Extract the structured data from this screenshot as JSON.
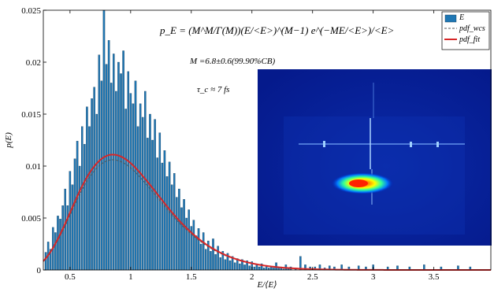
{
  "chart_data": {
    "type": "bar",
    "title": "",
    "formula": "p_E = (M^M/Γ(M))(E/<E>)^(M−1) e^(−ME/<E>)/<E>",
    "annotations": [
      "M =6.8±0.6(99.90%CB)",
      "τ_c ≈ 7 fs"
    ],
    "xlabel": "E/⟨E⟩",
    "ylabel": "p(E)",
    "xlim": [
      0.28,
      3.97
    ],
    "ylim": [
      0,
      0.025
    ],
    "xticks": [
      0.5,
      1,
      1.5,
      2,
      2.5,
      3,
      3.5
    ],
    "yticks": [
      0,
      0.005,
      0.01,
      0.015,
      0.02,
      0.025
    ],
    "xtick_labels": [
      "0.5",
      "1",
      "1.5",
      "2",
      "2.5",
      "3",
      "3.5"
    ],
    "ytick_labels": [
      "0",
      "0.005",
      "0.01",
      "0.015",
      "0.02",
      "0.025"
    ],
    "legend": {
      "placement": "top-right",
      "entries": [
        "E",
        "pdf_wcs",
        "pdf_fit"
      ]
    },
    "pdf_M": 6.8,
    "series": [
      {
        "name": "E",
        "kind": "bar",
        "color": "#1f77b4",
        "x": [
          0.3,
          0.32,
          0.34,
          0.36,
          0.38,
          0.4,
          0.42,
          0.44,
          0.46,
          0.48,
          0.5,
          0.52,
          0.54,
          0.56,
          0.58,
          0.6,
          0.62,
          0.64,
          0.66,
          0.68,
          0.7,
          0.72,
          0.74,
          0.76,
          0.78,
          0.8,
          0.82,
          0.84,
          0.86,
          0.88,
          0.9,
          0.92,
          0.94,
          0.96,
          0.98,
          1.0,
          1.02,
          1.04,
          1.06,
          1.08,
          1.1,
          1.12,
          1.14,
          1.16,
          1.18,
          1.2,
          1.22,
          1.24,
          1.26,
          1.28,
          1.3,
          1.32,
          1.34,
          1.36,
          1.38,
          1.4,
          1.42,
          1.44,
          1.46,
          1.48,
          1.5,
          1.52,
          1.54,
          1.56,
          1.58,
          1.6,
          1.62,
          1.64,
          1.66,
          1.68,
          1.7,
          1.72,
          1.74,
          1.76,
          1.78,
          1.8,
          1.82,
          1.84,
          1.86,
          1.88,
          1.9,
          1.92,
          1.94,
          1.96,
          1.98,
          2.0,
          2.02,
          2.04,
          2.06,
          2.08,
          2.1,
          2.12,
          2.14,
          2.16,
          2.18,
          2.2,
          2.22,
          2.24,
          2.26,
          2.28,
          2.3,
          2.32,
          2.36,
          2.4,
          2.44,
          2.48,
          2.52,
          2.56,
          2.6,
          2.64,
          2.68,
          2.74,
          2.8,
          2.88,
          2.94,
          3.0,
          3.12,
          3.2,
          3.3,
          3.42,
          3.56,
          3.7,
          3.8
        ],
        "values": [
          0.0017,
          0.0027,
          0.002,
          0.0041,
          0.0036,
          0.0052,
          0.0049,
          0.0062,
          0.0078,
          0.0062,
          0.0095,
          0.0082,
          0.0107,
          0.0124,
          0.01,
          0.0138,
          0.0121,
          0.0157,
          0.0138,
          0.0165,
          0.0176,
          0.015,
          0.0207,
          0.0182,
          0.025,
          0.0198,
          0.0221,
          0.018,
          0.0208,
          0.0172,
          0.02,
          0.0189,
          0.0211,
          0.0155,
          0.0191,
          0.017,
          0.016,
          0.0182,
          0.0138,
          0.016,
          0.0147,
          0.0172,
          0.0127,
          0.015,
          0.0125,
          0.0145,
          0.0108,
          0.0132,
          0.0103,
          0.0115,
          0.009,
          0.0104,
          0.0082,
          0.0093,
          0.007,
          0.0078,
          0.006,
          0.0068,
          0.005,
          0.0058,
          0.0042,
          0.0048,
          0.0033,
          0.004,
          0.0025,
          0.0036,
          0.002,
          0.0028,
          0.0018,
          0.003,
          0.0015,
          0.0023,
          0.0012,
          0.0018,
          0.001,
          0.0016,
          0.0009,
          0.0013,
          0.0007,
          0.0011,
          0.0006,
          0.001,
          0.0005,
          0.0009,
          0.0004,
          0.0008,
          0.0003,
          0.0006,
          0.0003,
          0.0006,
          0.0002,
          0.0004,
          0.0002,
          0.0003,
          0.0002,
          0.0007,
          0.0002,
          0.0003,
          0.0001,
          0.0005,
          0.0002,
          0.0003,
          0.0002,
          0.0013,
          0.0005,
          0.0003,
          0.0003,
          0.0005,
          0.0002,
          0.0004,
          0.0003,
          0.0005,
          0.0003,
          0.0004,
          0.0003,
          0.0005,
          0.0003,
          0.0004,
          0.0003,
          0.0005,
          0.0003,
          0.0004,
          0.0003
        ]
      },
      {
        "name": "pdf_wcs",
        "kind": "line",
        "color": "#555555",
        "dash": true
      },
      {
        "name": "pdf_fit",
        "kind": "line",
        "color": "#d62728"
      }
    ],
    "grid": false
  }
}
